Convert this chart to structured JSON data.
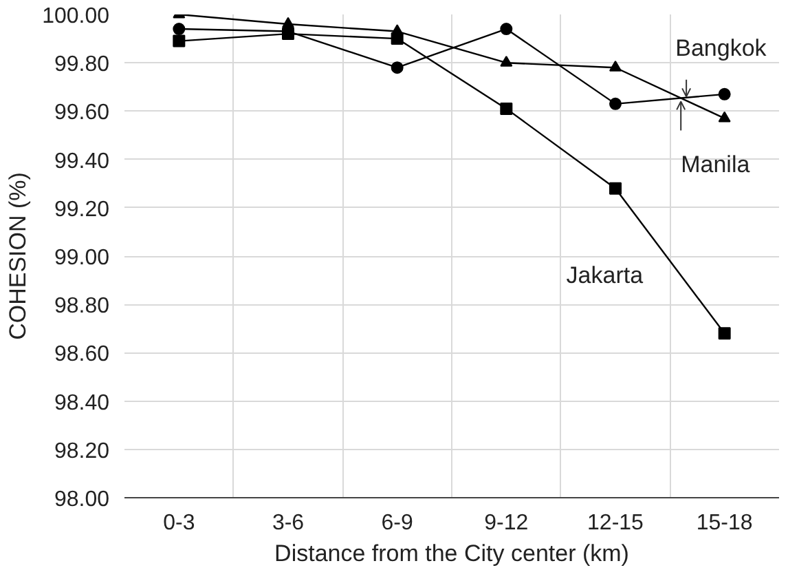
{
  "chart_data": {
    "type": "line",
    "xlabel": "Distance from the City center (km)",
    "ylabel": "COHESION (%)",
    "categories": [
      "0-3",
      "3-6",
      "6-9",
      "9-12",
      "12-15",
      "15-18"
    ],
    "ylim": [
      98,
      100
    ],
    "yticks": [
      {
        "value": 98,
        "label": "98.00"
      },
      {
        "value": 98.2,
        "label": "98.20"
      },
      {
        "value": 98.4,
        "label": "98.40"
      },
      {
        "value": 98.6,
        "label": "98.60"
      },
      {
        "value": 98.8,
        "label": "98.80"
      },
      {
        "value": 99,
        "label": "99.00"
      },
      {
        "value": 99.2,
        "label": "99.20"
      },
      {
        "value": 99.4,
        "label": "99.40"
      },
      {
        "value": 99.6,
        "label": "99.60"
      },
      {
        "value": 99.8,
        "label": "99.80"
      },
      {
        "value": 100,
        "label": "100.00"
      }
    ],
    "grid": true,
    "series": [
      {
        "name": "Bangkok",
        "color": "#000000",
        "marker": "triangle",
        "values": [
          100.0,
          99.96,
          99.93,
          99.8,
          99.78,
          99.57
        ]
      },
      {
        "name": "Manila",
        "color": "#000000",
        "marker": "circle",
        "values": [
          99.94,
          99.93,
          99.78,
          99.94,
          99.63,
          99.67
        ]
      },
      {
        "name": "Jakarta",
        "color": "#000000",
        "marker": "square",
        "values": [
          99.89,
          99.92,
          99.9,
          99.61,
          99.28,
          98.68
        ]
      }
    ]
  }
}
